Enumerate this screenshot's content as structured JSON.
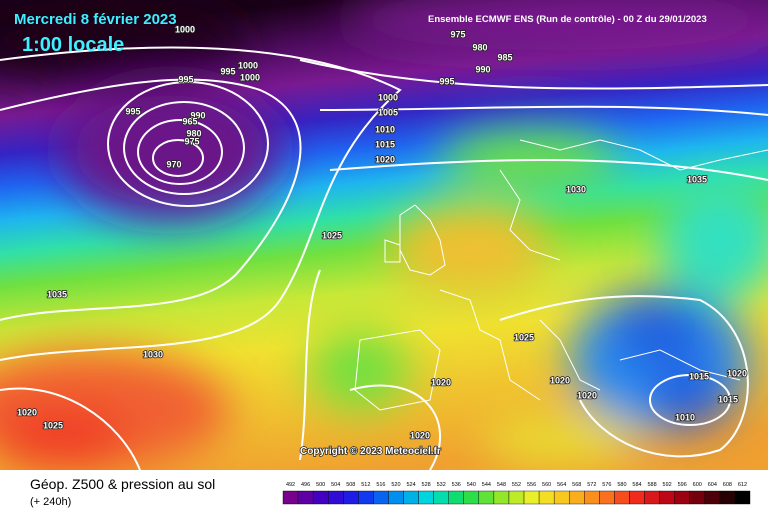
{
  "header": {
    "date": "Mercredi 8 février 2023",
    "time": "1:00 locale",
    "model": "Ensemble ECMWF ENS  (Run de contrôle)  -  00 Z du 29/01/2023"
  },
  "copyright": "Copyright © 2023 Meteociel.fr",
  "footer": {
    "title": "Géop. Z500 & pression au sol",
    "lead": "(+ 240h)"
  },
  "isobars": [
    1000,
    975,
    980,
    985,
    990,
    995,
    995,
    995,
    1000,
    1000,
    995,
    990,
    965,
    980,
    975,
    970,
    1000,
    1005,
    1010,
    1015,
    1020,
    1025,
    1030,
    1035,
    1035,
    1030,
    1025,
    1020,
    1020,
    1020,
    1015,
    1020,
    1015,
    1010,
    1020,
    1025,
    1020
  ],
  "scale": [
    492,
    496,
    500,
    504,
    508,
    512,
    516,
    520,
    524,
    528,
    532,
    536,
    540,
    544,
    548,
    552,
    556,
    560,
    564,
    568,
    572,
    576,
    580,
    584,
    588,
    592,
    596,
    600,
    604,
    608,
    612
  ]
}
